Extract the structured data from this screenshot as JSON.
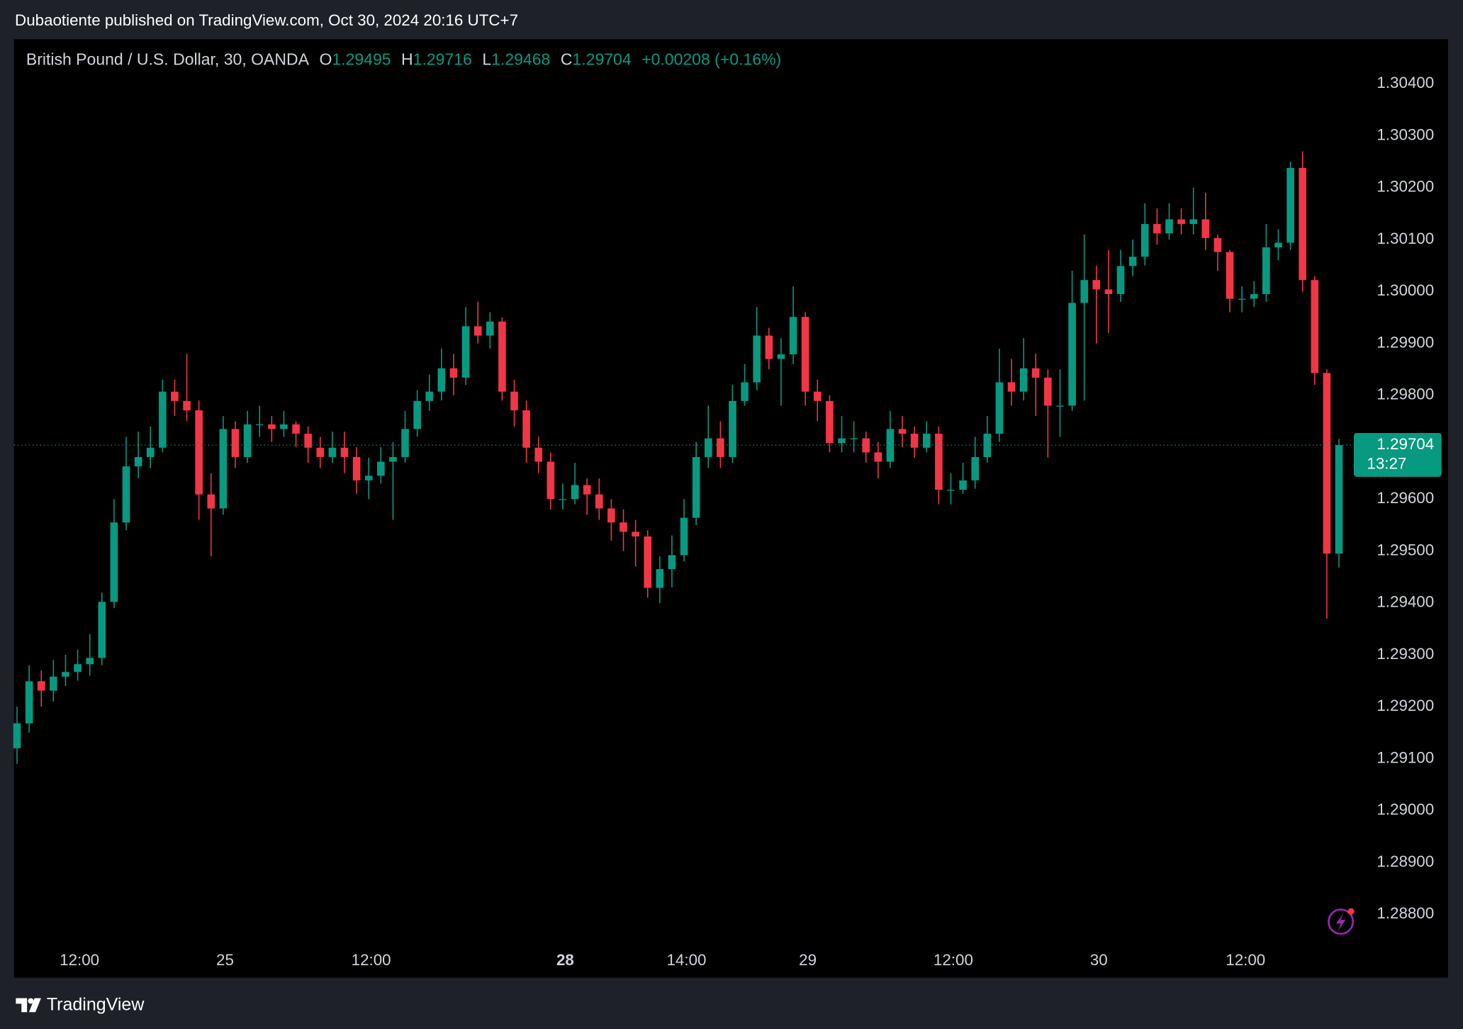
{
  "publisher": "Dubaotiente published on TradingView.com, Oct 30, 2024 20:16 UTC+7",
  "footer_brand": "TradingView",
  "chart_data": {
    "type": "candlestick",
    "title": "British Pound / U.S. Dollar, 30, OANDA",
    "ohlc_labels": [
      "O",
      "H",
      "L",
      "C"
    ],
    "change": "+0.00208 (+0.16%)",
    "countdown": "13:27",
    "up_color": "#089981",
    "down_color": "#f23645",
    "grid": false,
    "open": [
      1.2912,
      1.29168,
      1.29249,
      1.29231,
      1.29258,
      1.29267,
      1.29282,
      1.29294,
      1.29402,
      1.29555,
      1.29663,
      1.29681,
      1.29699,
      1.29807,
      1.29789,
      1.29771,
      1.29609,
      1.29582,
      1.29735,
      1.29681,
      1.29744,
      1.29744,
      1.29735,
      1.29744,
      1.29726,
      1.29699,
      1.29681,
      1.29699,
      1.29681,
      1.29636,
      1.29645,
      1.29672,
      1.29681,
      1.29735,
      1.29789,
      1.29807,
      1.29852,
      1.29834,
      1.29933,
      1.29915,
      1.29942,
      1.29807,
      1.29771,
      1.29699,
      1.29672,
      1.296,
      1.296,
      1.29627,
      1.29609,
      1.29582,
      1.29555,
      1.29537,
      1.29528,
      1.29429,
      1.29465,
      1.29492,
      1.29564,
      1.29681,
      1.29717,
      1.29681,
      1.29789,
      1.29825,
      1.29915,
      1.2987,
      1.29879,
      1.29951,
      1.29807,
      1.29789,
      1.29708,
      1.29717,
      1.29717,
      1.2969,
      1.29672,
      1.29735,
      1.29726,
      1.29699,
      1.29726,
      1.29618,
      1.29618,
      1.29636,
      1.29681,
      1.29726,
      1.29825,
      1.29807,
      1.29852,
      1.29834,
      1.2978,
      1.2978,
      1.29978,
      1.30022,
      1.30004,
      1.29995,
      1.30049,
      1.30067,
      1.3013,
      1.30112,
      1.30139,
      1.3013,
      1.30139,
      1.30103,
      1.30076,
      1.29986,
      1.29986,
      1.29995,
      1.30085,
      1.30094,
      1.30238,
      1.30022,
      1.29843,
      1.29495
    ],
    "high": [
      1.292,
      1.2928,
      1.2927,
      1.2929,
      1.293,
      1.2931,
      1.2934,
      1.2942,
      1.296,
      1.2972,
      1.2973,
      1.2974,
      1.2983,
      1.2983,
      1.2988,
      1.2979,
      1.2965,
      1.2976,
      1.2975,
      1.2977,
      1.2978,
      1.2976,
      1.2977,
      1.2975,
      1.2974,
      1.2972,
      1.2973,
      1.2973,
      1.297,
      1.2968,
      1.297,
      1.2971,
      1.2977,
      1.2981,
      1.2984,
      1.2989,
      1.2988,
      1.2997,
      1.2998,
      1.2996,
      1.2995,
      1.2983,
      1.2979,
      1.2972,
      1.2969,
      1.2963,
      1.2967,
      1.2964,
      1.2964,
      1.296,
      1.2958,
      1.2956,
      1.2954,
      1.2949,
      1.2953,
      1.296,
      1.2971,
      1.2978,
      1.2975,
      1.2982,
      1.2986,
      1.2997,
      1.2993,
      1.2991,
      1.3001,
      1.2996,
      1.2983,
      1.298,
      1.2976,
      1.2975,
      1.2973,
      1.2971,
      1.2977,
      1.2976,
      1.2974,
      1.2975,
      1.2974,
      1.2965,
      1.2967,
      1.2972,
      1.2976,
      1.2989,
      1.2987,
      1.2991,
      1.2988,
      1.2985,
      1.2985,
      1.3004,
      1.3011,
      1.3005,
      1.3008,
      1.3008,
      1.301,
      1.3017,
      1.3016,
      1.3017,
      1.3016,
      1.302,
      1.3019,
      1.3011,
      1.3008,
      1.3001,
      1.3002,
      1.3013,
      1.3012,
      1.3025,
      1.3027,
      1.3003,
      1.2985,
      1.29716
    ],
    "low": [
      1.2909,
      1.2915,
      1.292,
      1.2921,
      1.2924,
      1.2925,
      1.2926,
      1.2928,
      1.2939,
      1.2954,
      1.2964,
      1.2966,
      1.2969,
      1.2976,
      1.2975,
      1.2956,
      1.2949,
      1.2957,
      1.2966,
      1.2967,
      1.2972,
      1.2971,
      1.2972,
      1.297,
      1.2967,
      1.2966,
      1.2967,
      1.2965,
      1.2961,
      1.296,
      1.2963,
      1.2956,
      1.2967,
      1.2972,
      1.2977,
      1.2979,
      1.298,
      1.2982,
      1.299,
      1.2989,
      1.2979,
      1.2974,
      1.2967,
      1.2965,
      1.2958,
      1.2958,
      1.2959,
      1.2957,
      1.2956,
      1.2952,
      1.295,
      1.2947,
      1.2941,
      1.294,
      1.2943,
      1.2948,
      1.2955,
      1.2966,
      1.2966,
      1.2967,
      1.2978,
      1.2981,
      1.2985,
      1.2978,
      1.2986,
      1.2978,
      1.2975,
      1.2969,
      1.2969,
      1.2969,
      1.2967,
      1.2964,
      1.2966,
      1.297,
      1.2968,
      1.2969,
      1.2959,
      1.2959,
      1.2961,
      1.2962,
      1.2967,
      1.2971,
      1.2978,
      1.2979,
      1.2976,
      1.2968,
      1.2972,
      1.2977,
      1.2979,
      1.299,
      1.2992,
      1.2998,
      1.3003,
      1.3005,
      1.3009,
      1.301,
      1.3011,
      1.3011,
      1.3008,
      1.3004,
      1.2996,
      1.2996,
      1.2997,
      1.2998,
      1.3006,
      1.3008,
      1.3,
      1.2982,
      1.2937,
      1.29468
    ],
    "close": [
      1.29168,
      1.29249,
      1.29231,
      1.29258,
      1.29267,
      1.29282,
      1.29294,
      1.29402,
      1.29555,
      1.29663,
      1.29681,
      1.29699,
      1.29807,
      1.29789,
      1.29771,
      1.29609,
      1.29582,
      1.29735,
      1.29681,
      1.29744,
      1.29744,
      1.29735,
      1.29744,
      1.29726,
      1.29699,
      1.29681,
      1.29699,
      1.29681,
      1.29636,
      1.29645,
      1.29672,
      1.29681,
      1.29735,
      1.29789,
      1.29807,
      1.29852,
      1.29834,
      1.29933,
      1.29915,
      1.29942,
      1.29807,
      1.29771,
      1.29699,
      1.29672,
      1.296,
      1.296,
      1.29627,
      1.29609,
      1.29582,
      1.29555,
      1.29537,
      1.29528,
      1.29429,
      1.29465,
      1.29492,
      1.29564,
      1.29681,
      1.29717,
      1.29681,
      1.29789,
      1.29825,
      1.29915,
      1.2987,
      1.29879,
      1.29951,
      1.29807,
      1.29789,
      1.29708,
      1.29717,
      1.29717,
      1.2969,
      1.29672,
      1.29735,
      1.29726,
      1.29699,
      1.29726,
      1.29618,
      1.29618,
      1.29636,
      1.29681,
      1.29726,
      1.29825,
      1.29807,
      1.29852,
      1.29834,
      1.2978,
      1.2978,
      1.29978,
      1.30022,
      1.30004,
      1.29995,
      1.30049,
      1.30067,
      1.3013,
      1.30112,
      1.30139,
      1.3013,
      1.30139,
      1.30103,
      1.30076,
      1.29986,
      1.29986,
      1.29995,
      1.30085,
      1.30094,
      1.30238,
      1.30022,
      1.29843,
      1.29495,
      1.29704
    ],
    "xlim": [
      -0.25,
      110.15
    ],
    "xticks": [
      {
        "value": 5.15,
        "label": "12:00"
      },
      {
        "value": 17.15,
        "label": "25"
      },
      {
        "value": 29.2,
        "label": "12:00"
      },
      {
        "value": 45.2,
        "label": "28"
      },
      {
        "value": 55.2,
        "label": "14:00"
      },
      {
        "value": 65.2,
        "label": "29"
      },
      {
        "value": 77.2,
        "label": "12:00"
      },
      {
        "value": 89.2,
        "label": "30"
      },
      {
        "value": 101.3,
        "label": "12:00"
      }
    ],
    "ylim": [
      1.28678,
      1.30486
    ],
    "yticks": [
      {
        "value": 1.304,
        "label": "1.30400"
      },
      {
        "value": 1.303,
        "label": "1.30300"
      },
      {
        "value": 1.302,
        "label": "1.30200"
      },
      {
        "value": 1.301,
        "label": "1.30100"
      },
      {
        "value": 1.3,
        "label": "1.30000"
      },
      {
        "value": 1.299,
        "label": "1.29900"
      },
      {
        "value": 1.298,
        "label": "1.29800"
      },
      {
        "value": 1.297,
        "label": "1.29700"
      },
      {
        "value": 1.296,
        "label": "1.29600"
      },
      {
        "value": 1.295,
        "label": "1.29500"
      },
      {
        "value": 1.294,
        "label": "1.29400"
      },
      {
        "value": 1.293,
        "label": "1.29300"
      },
      {
        "value": 1.292,
        "label": "1.29200"
      },
      {
        "value": 1.291,
        "label": "1.29100"
      },
      {
        "value": 1.29,
        "label": "1.29000"
      },
      {
        "value": 1.289,
        "label": "1.28900"
      },
      {
        "value": 1.288,
        "label": "1.28800"
      }
    ]
  }
}
